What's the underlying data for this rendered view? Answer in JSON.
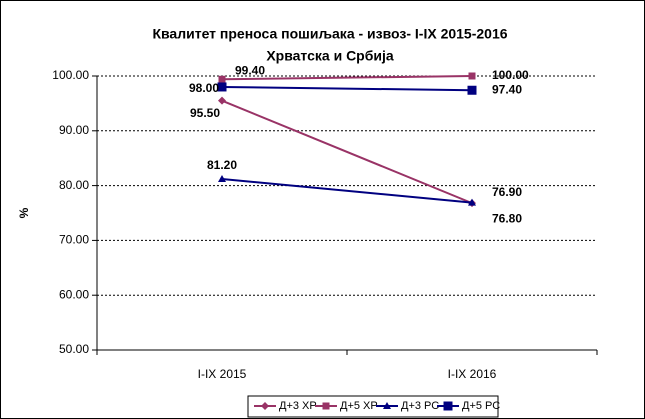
{
  "chart_data": {
    "type": "line",
    "title": "Квалитет преноса пошиљака - извоз- I-IX 2015-2016",
    "subtitle": "Хрватска и Србија",
    "y_label": "%",
    "categories": [
      "I-IX 2015",
      "I-IX 2016"
    ],
    "series": [
      {
        "name": "Д+3 ХР",
        "color": "#993366",
        "marker": "diamond",
        "values": [
          95.5,
          76.8
        ],
        "value_labels": [
          "95.50",
          "76.80"
        ]
      },
      {
        "name": "Д+5 ХР",
        "color": "#993366",
        "marker": "square",
        "values": [
          99.4,
          100
        ],
        "value_labels": [
          "99.40",
          "100.00"
        ]
      },
      {
        "name": "Д+3 РС",
        "color": "#000080",
        "marker": "triangle",
        "values": [
          81.2,
          76.9
        ],
        "value_labels": [
          "81.20",
          "76.90"
        ]
      },
      {
        "name": "Д+5 РС",
        "color": "#000080",
        "marker": "bigsquare",
        "values": [
          98,
          97.4
        ],
        "value_labels": [
          "98.00",
          "97.40"
        ]
      }
    ],
    "ylim": [
      50,
      100
    ],
    "yticks": [
      {
        "value": 50,
        "label": "50.00"
      },
      {
        "value": 60,
        "label": "60.00"
      },
      {
        "value": 70,
        "label": "70.00"
      },
      {
        "value": 80,
        "label": "80.00"
      },
      {
        "value": 90,
        "label": "90.00"
      },
      {
        "value": 100,
        "label": "100.00"
      }
    ],
    "grid": true,
    "legend": "bottom"
  }
}
